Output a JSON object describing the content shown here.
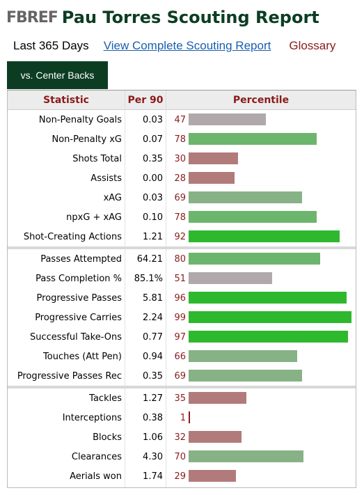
{
  "header": {
    "logo": "FBREF",
    "title": "Pau Torres Scouting Report"
  },
  "subnav": {
    "period": "Last 365 Days",
    "full_report_link": "View Complete Scouting Report",
    "glossary_link": "Glossary"
  },
  "tab": {
    "label": "vs. Center Backs"
  },
  "table": {
    "columns": {
      "statistic": "Statistic",
      "per90": "Per 90",
      "percentile": "Percentile"
    },
    "colors": {
      "high": "#2eb82e",
      "above": "#6cb56c",
      "mid": "#86b286",
      "average": "#b0a8aa",
      "low": "#b27b7b"
    },
    "groups": [
      [
        {
          "stat": "Non-Penalty Goals",
          "per90": "0.03",
          "percentile": 47,
          "tier": "average"
        },
        {
          "stat": "Non-Penalty xG",
          "per90": "0.07",
          "percentile": 78,
          "tier": "above"
        },
        {
          "stat": "Shots Total",
          "per90": "0.35",
          "percentile": 30,
          "tier": "low"
        },
        {
          "stat": "Assists",
          "per90": "0.00",
          "percentile": 28,
          "tier": "low"
        },
        {
          "stat": "xAG",
          "per90": "0.03",
          "percentile": 69,
          "tier": "mid"
        },
        {
          "stat": "npxG + xAG",
          "per90": "0.10",
          "percentile": 78,
          "tier": "above"
        },
        {
          "stat": "Shot-Creating Actions",
          "per90": "1.21",
          "percentile": 92,
          "tier": "high"
        }
      ],
      [
        {
          "stat": "Passes Attempted",
          "per90": "64.21",
          "percentile": 80,
          "tier": "above"
        },
        {
          "stat": "Pass Completion %",
          "per90": "85.1%",
          "percentile": 51,
          "tier": "average"
        },
        {
          "stat": "Progressive Passes",
          "per90": "5.81",
          "percentile": 96,
          "tier": "high"
        },
        {
          "stat": "Progressive Carries",
          "per90": "2.24",
          "percentile": 99,
          "tier": "high"
        },
        {
          "stat": "Successful Take-Ons",
          "per90": "0.77",
          "percentile": 97,
          "tier": "high"
        },
        {
          "stat": "Touches (Att Pen)",
          "per90": "0.94",
          "percentile": 66,
          "tier": "mid"
        },
        {
          "stat": "Progressive Passes Rec",
          "per90": "0.35",
          "percentile": 69,
          "tier": "mid"
        }
      ],
      [
        {
          "stat": "Tackles",
          "per90": "1.27",
          "percentile": 35,
          "tier": "low"
        },
        {
          "stat": "Interceptions",
          "per90": "0.38",
          "percentile": 1,
          "tier": "low"
        },
        {
          "stat": "Blocks",
          "per90": "1.06",
          "percentile": 32,
          "tier": "low"
        },
        {
          "stat": "Clearances",
          "per90": "4.30",
          "percentile": 70,
          "tier": "mid"
        },
        {
          "stat": "Aerials won",
          "per90": "1.74",
          "percentile": 29,
          "tier": "low"
        }
      ]
    ]
  }
}
